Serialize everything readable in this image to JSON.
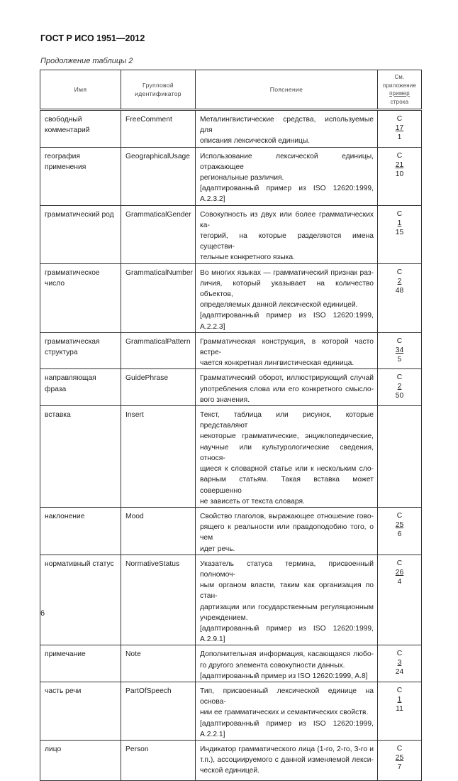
{
  "header": {
    "doc_code": "ГОСТ Р ИСО 1951—2012",
    "caption": "Продолжение таблицы 2"
  },
  "table": {
    "columns": {
      "name": "Имя",
      "group_id": "Групповой идентификатор",
      "explanation": "Пояснение",
      "ref_1": "См.",
      "ref_2": "приложение",
      "ref_3": "пример",
      "ref_4": "строка"
    },
    "rows": [
      {
        "name": "свободный комментарий",
        "id": "FreeComment",
        "desc": [
          "Металингвистические средства,  используемые для",
          "описания лексической единицы."
        ],
        "ref": [
          "C",
          "17",
          "1"
        ],
        "h": 47
      },
      {
        "name": "география применения",
        "id": "GeographicalUsage",
        "desc": [
          "Использование лексической единицы, отражающее",
          "региональные различия.",
          "[адаптированный пример из ISO 12620:1999, A.2.3.2]"
        ],
        "ref": [
          "C",
          "21",
          "10"
        ],
        "h": 48
      },
      {
        "name": "грамматический род",
        "id": "GrammaticalGender",
        "desc": [
          "Совокупность из двух или более грамматических ка-",
          "тегорий, на которые разделяются имена существи-",
          "тельные конкретного языка."
        ],
        "ref": [
          "C",
          "1",
          "15"
        ],
        "h": 53
      },
      {
        "name": "грамматическое число",
        "id": "GrammaticalNumber",
        "desc": [
          "Во многих языках — грамматический признак раз-",
          "личия, который указывает на количество объектов,",
          "определяемых данной лексической единицей.",
          "[адаптированный пример из ISO 12620:1999, A.2.2.3]"
        ],
        "ref": [
          "C",
          "2",
          "48"
        ],
        "h": 58
      },
      {
        "name": "грамматическая структура",
        "id": "GrammaticalPattern",
        "desc": [
          "Грамматическая конструкция, в которой часто встре-",
          "чается конкретная лингвистическая единица."
        ],
        "ref": [
          "C",
          "34",
          "5"
        ],
        "h": 50
      },
      {
        "name": "направляющая фраза",
        "id": "GuidePhrase",
        "desc": [
          "Грамматический оборот, иллюстрирующий случай",
          "употребления слова или его конкретного смысло-",
          "вого значения."
        ],
        "ref": [
          "C",
          "2",
          "50"
        ],
        "h": 48
      },
      {
        "name": "вставка",
        "id": "Insert",
        "desc": [
          "Текст, таблица или рисунок, которые представляют",
          "некоторые грамматические, энциклопедические,",
          "научные или культурологические сведения, относя-",
          "щиеся к словарной статье или к нескольким сло-",
          "варным статьям. Такая вставка может совершенно",
          "не зависеть от текста словаря."
        ],
        "ref": [],
        "h": 85
      },
      {
        "name": "наклонение",
        "id": "Mood",
        "desc": [
          "Свойство глаголов, выражающее отношение гово-",
          "рящего к реальности или правдоподобию того, о чем",
          "идет речь."
        ],
        "ref": [
          "C",
          "25",
          "6"
        ],
        "h": 50
      },
      {
        "name": "нормативный статус",
        "id": "NormativeStatus",
        "desc": [
          "Указатель статуса термина, присвоенный полномоч-",
          "ным органом власти, таким как организация по стан-",
          "дартизации или государственным регуляционным",
          "учреждением.",
          "[адаптированный пример из ISO 12620:1999, A.2.9.1]"
        ],
        "ref": [
          "C",
          "26",
          "4"
        ],
        "h": 74
      },
      {
        "name": "примечание",
        "id": "Note",
        "desc": [
          "Дополнительная информация, касающаяся любо-",
          "го другого элемента совокупности данных.",
          "[адаптированный пример из ISO 12620:1999, A.8]"
        ],
        "ref": [
          "C",
          "3",
          "24"
        ],
        "h": 50
      },
      {
        "name": "часть речи",
        "id": "PartOfSpeech",
        "desc": [
          "Тип, присвоенный лексической единице на основа-",
          "нии ее грамматических и семантических свойств.",
          "[адаптированный пример из ISO 12620:1999, A.2.2.1]"
        ],
        "ref": [
          "C",
          "1",
          "11"
        ],
        "h": 48
      },
      {
        "name": "лицо",
        "id": "Person",
        "desc": [
          "Индикатор грамматического лица (1-го, 2-го, 3-го и",
          "т.п.), ассоциируемого с данной изменяемой лекси-",
          "ческой единицей."
        ],
        "ref": [
          "C",
          "25",
          "7"
        ],
        "h": 57
      }
    ]
  },
  "footer": {
    "page_number": "6"
  }
}
